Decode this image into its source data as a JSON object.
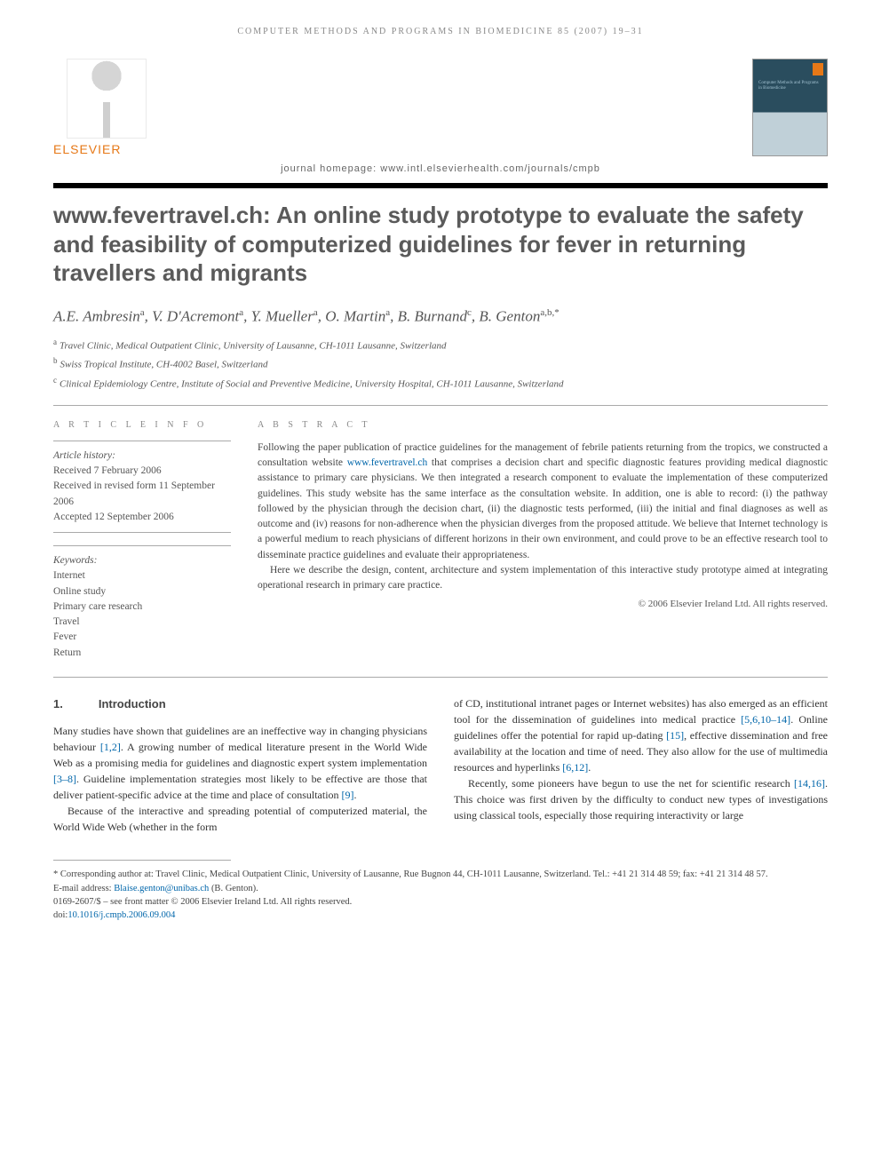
{
  "running_head": "COMPUTER METHODS AND PROGRAMS IN BIOMEDICINE 85 (2007) 19–31",
  "publisher": "ELSEVIER",
  "journal_cover_label": "Computer Methods and Programs in Biomedicine",
  "journal_homepage": "journal homepage: www.intl.elsevierhealth.com/journals/cmpb",
  "title": "www.fevertravel.ch: An online study prototype to evaluate the safety and feasibility of computerized guidelines for fever in returning travellers and migrants",
  "authors_html": "A.E. Ambresin<sup>a</sup>, V. D'Acremont<sup>a</sup>, Y. Mueller<sup>a</sup>, O. Martin<sup>a</sup>, B. Burnand<sup>c</sup>, B. Genton<sup>a,b,*</sup>",
  "affiliations": {
    "a": "Travel Clinic, Medical Outpatient Clinic, University of Lausanne, CH-1011 Lausanne, Switzerland",
    "b": "Swiss Tropical Institute, CH-4002 Basel, Switzerland",
    "c": "Clinical Epidemiology Centre, Institute of Social and Preventive Medicine, University Hospital, CH-1011 Lausanne, Switzerland"
  },
  "article_info": {
    "label": "A R T I C L E   I N F O",
    "history_label": "Article history:",
    "received": "Received 7 February 2006",
    "revised": "Received in revised form 11 September 2006",
    "accepted": "Accepted 12 September 2006",
    "keywords_label": "Keywords:",
    "keywords": [
      "Internet",
      "Online study",
      "Primary care research",
      "Travel",
      "Fever",
      "Return"
    ]
  },
  "abstract": {
    "label": "A B S T R A C T",
    "p1": "Following the paper publication of practice guidelines for the management of febrile patients returning from the tropics, we constructed a consultation website ",
    "link": "www.fevertravel.ch",
    "p1b": " that comprises a decision chart and specific diagnostic features providing medical diagnostic assistance to primary care physicians. We then integrated a research component to evaluate the implementation of these computerized guidelines. This study website has the same interface as the consultation website. In addition, one is able to record: (i) the pathway followed by the physician through the decision chart, (ii) the diagnostic tests performed, (iii) the initial and final diagnoses as well as outcome and (iv) reasons for non-adherence when the physician diverges from the proposed attitude. We believe that Internet technology is a powerful medium to reach physicians of different horizons in their own environment, and could prove to be an effective research tool to disseminate practice guidelines and evaluate their appropriateness.",
    "p2": "Here we describe the design, content, architecture and system implementation of this interactive study prototype aimed at integrating operational research in primary care practice.",
    "copyright": "© 2006 Elsevier Ireland Ltd. All rights reserved."
  },
  "body": {
    "section_num": "1.",
    "section_title": "Introduction",
    "col1_p1a": "Many studies have shown that guidelines are an ineffective way in changing physicians behaviour ",
    "col1_p1_cite1": "[1,2]",
    "col1_p1b": ". A growing number of medical literature present in the World Wide Web as a promising media for guidelines and diagnostic expert system implementation ",
    "col1_p1_cite2": "[3–8]",
    "col1_p1c": ". Guideline implementation strategies most likely to be effective are those that deliver patient-specific advice at the time and place of consultation ",
    "col1_p1_cite3": "[9]",
    "col1_p1d": ".",
    "col1_p2": "Because of the interactive and spreading potential of computerized material, the World Wide Web (whether in the form",
    "col2_p1a": "of CD, institutional intranet pages or Internet websites) has also emerged as an efficient tool for the dissemination of guidelines into medical practice ",
    "col2_p1_cite1": "[5,6,10–14]",
    "col2_p1b": ". Online guidelines offer the potential for rapid up-dating ",
    "col2_p1_cite2": "[15]",
    "col2_p1c": ", effective dissemination and free availability at the location and time of need. They also allow for the use of multimedia resources and hyperlinks ",
    "col2_p1_cite3": "[6,12]",
    "col2_p1d": ".",
    "col2_p2a": "Recently, some pioneers have begun to use the net for scientific research ",
    "col2_p2_cite1": "[14,16]",
    "col2_p2b": ". This choice was first driven by the difficulty to conduct new types of investigations using classical tools, especially those requiring interactivity or large"
  },
  "footnotes": {
    "corr": "* Corresponding author at: Travel Clinic, Medical Outpatient Clinic, University of Lausanne, Rue Bugnon 44, CH-1011 Lausanne, Switzerland. Tel.: +41 21 314 48 59; fax: +41 21 314 48 57.",
    "email_label": "E-mail address: ",
    "email": "Blaise.genton@unibas.ch",
    "email_suffix": " (B. Genton).",
    "front": "0169-2607/$ – see front matter © 2006 Elsevier Ireland Ltd. All rights reserved.",
    "doi_label": "doi:",
    "doi": "10.1016/j.cmpb.2006.09.004"
  },
  "colors": {
    "orange": "#e67817",
    "link": "#0066aa",
    "heading_gray": "#5a5a5a"
  }
}
